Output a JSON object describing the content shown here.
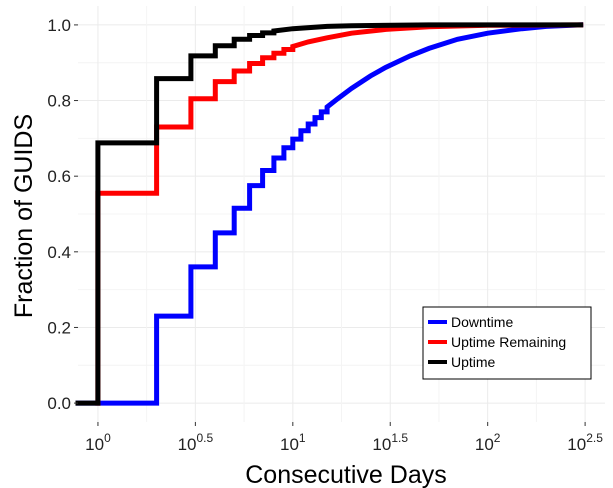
{
  "chart_data": {
    "type": "line",
    "step": true,
    "xscale": "log10",
    "xlabel": "Consecutive Days",
    "ylabel": "Fraction of GUIDS",
    "xlim": [
      0.79,
      400
    ],
    "ylim": [
      -0.05,
      1.05
    ],
    "x_ticks": [
      {
        "value": 1,
        "base": "10",
        "exp": "0"
      },
      {
        "value": 3.162,
        "base": "10",
        "exp": "0.5"
      },
      {
        "value": 10,
        "base": "10",
        "exp": "1"
      },
      {
        "value": 31.62,
        "base": "10",
        "exp": "1.5"
      },
      {
        "value": 100,
        "base": "10",
        "exp": "2"
      },
      {
        "value": 316.2,
        "base": "10",
        "exp": "2.5"
      }
    ],
    "y_ticks": [
      "0.0",
      "0.2",
      "0.4",
      "0.6",
      "0.8",
      "1.0"
    ],
    "grid": true,
    "legend_position": "bottom-right",
    "series": [
      {
        "name": "Downtime",
        "color": "#0000ff",
        "points": [
          [
            0.79,
            0.0
          ],
          [
            2.0,
            0.0
          ],
          [
            2.0,
            0.23
          ],
          [
            3.0,
            0.23
          ],
          [
            3.0,
            0.36
          ],
          [
            4.0,
            0.36
          ],
          [
            4.0,
            0.45
          ],
          [
            5.0,
            0.45
          ],
          [
            5.0,
            0.515
          ],
          [
            6.0,
            0.515
          ],
          [
            6.0,
            0.575
          ],
          [
            7.0,
            0.575
          ],
          [
            7.0,
            0.615
          ],
          [
            8.0,
            0.615
          ],
          [
            8.0,
            0.648
          ],
          [
            9.0,
            0.648
          ],
          [
            9.0,
            0.675
          ],
          [
            10.0,
            0.675
          ],
          [
            10.0,
            0.698
          ],
          [
            11.0,
            0.698
          ],
          [
            11.0,
            0.72
          ],
          [
            12.0,
            0.72
          ],
          [
            12.0,
            0.738
          ],
          [
            13.0,
            0.738
          ],
          [
            13.0,
            0.755
          ],
          [
            14.0,
            0.755
          ],
          [
            14.0,
            0.77
          ],
          [
            15.0,
            0.77
          ],
          [
            15.0,
            0.783
          ],
          [
            17.0,
            0.805
          ],
          [
            20.0,
            0.832
          ],
          [
            25.0,
            0.865
          ],
          [
            30.0,
            0.888
          ],
          [
            40.0,
            0.918
          ],
          [
            50.0,
            0.938
          ],
          [
            70.0,
            0.962
          ],
          [
            100.0,
            0.978
          ],
          [
            150.0,
            0.99
          ],
          [
            200.0,
            0.996
          ],
          [
            300.0,
            1.0
          ]
        ]
      },
      {
        "name": "Uptime Remaining",
        "color": "#ff0000",
        "points": [
          [
            1.0,
            0.0
          ],
          [
            1.0,
            0.555
          ],
          [
            2.0,
            0.555
          ],
          [
            2.0,
            0.73
          ],
          [
            3.0,
            0.73
          ],
          [
            3.0,
            0.805
          ],
          [
            4.0,
            0.805
          ],
          [
            4.0,
            0.85
          ],
          [
            5.0,
            0.85
          ],
          [
            5.0,
            0.878
          ],
          [
            6.0,
            0.878
          ],
          [
            6.0,
            0.898
          ],
          [
            7.0,
            0.898
          ],
          [
            7.0,
            0.913
          ],
          [
            8.0,
            0.913
          ],
          [
            8.0,
            0.925
          ],
          [
            9.0,
            0.925
          ],
          [
            9.0,
            0.935
          ],
          [
            10.0,
            0.935
          ],
          [
            10.0,
            0.943
          ],
          [
            12.0,
            0.955
          ],
          [
            15.0,
            0.966
          ],
          [
            20.0,
            0.978
          ],
          [
            30.0,
            0.988
          ],
          [
            50.0,
            0.995
          ],
          [
            100.0,
            0.999
          ],
          [
            300.0,
            1.0
          ]
        ]
      },
      {
        "name": "Uptime",
        "color": "#000000",
        "points": [
          [
            0.79,
            0.0
          ],
          [
            1.0,
            0.0
          ],
          [
            1.0,
            0.688
          ],
          [
            2.0,
            0.688
          ],
          [
            2.0,
            0.858
          ],
          [
            3.0,
            0.858
          ],
          [
            3.0,
            0.918
          ],
          [
            4.0,
            0.918
          ],
          [
            4.0,
            0.945
          ],
          [
            5.0,
            0.945
          ],
          [
            5.0,
            0.962
          ],
          [
            6.0,
            0.962
          ],
          [
            6.0,
            0.972
          ],
          [
            7.0,
            0.972
          ],
          [
            7.0,
            0.979
          ],
          [
            8.0,
            0.979
          ],
          [
            8.0,
            0.984
          ],
          [
            10.0,
            0.99
          ],
          [
            15.0,
            0.996
          ],
          [
            20.0,
            0.998
          ],
          [
            50.0,
            1.0
          ],
          [
            300.0,
            1.0
          ]
        ]
      }
    ]
  }
}
